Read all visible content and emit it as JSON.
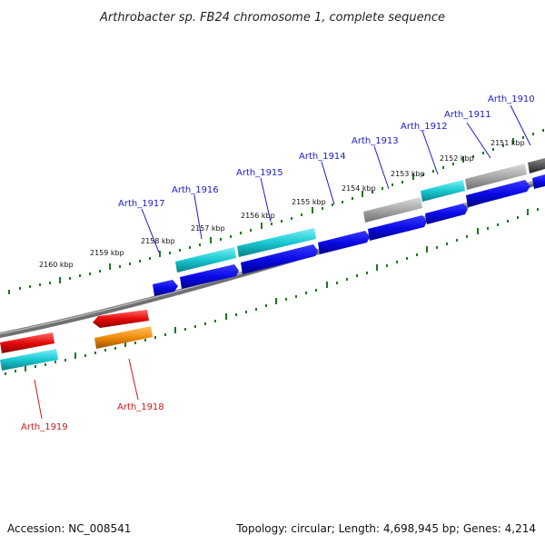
{
  "header": {
    "title": "Arthrobacter sp. FB24 chromosome 1, complete sequence"
  },
  "footer": {
    "accession": "Accession: NC_008541",
    "summary": "Topology: circular; Length: 4,698,945 bp; Genes: 4,214"
  },
  "scale_labels": [
    "2151 kbp",
    "2152 kbp",
    "2153 kbp",
    "2154 kbp",
    "2155 kbp",
    "2156 kbp",
    "2157 kbp",
    "2158 kbp",
    "2159 kbp",
    "2160 kbp"
  ],
  "gene_labels": [
    "Arth_1910",
    "Arth_1911",
    "Arth_1912",
    "Arth_1913",
    "Arth_1914",
    "Arth_1915",
    "Arth_1916",
    "Arth_1917",
    "Arth_1918",
    "Arth_1919"
  ],
  "colors": {
    "blue_gene": "#0a0ae6",
    "cyan_gene": "#19c8d2",
    "gray_gene": "#a8a8a8",
    "dark_gray_gene": "#555555",
    "red_gene": "#e60a0a",
    "orange_gene": "#f08c0a",
    "backbone": "#888888",
    "tick": "#1a7a1a",
    "label_blue": "#1a1acc",
    "label_red": "#cc1a1a"
  }
}
